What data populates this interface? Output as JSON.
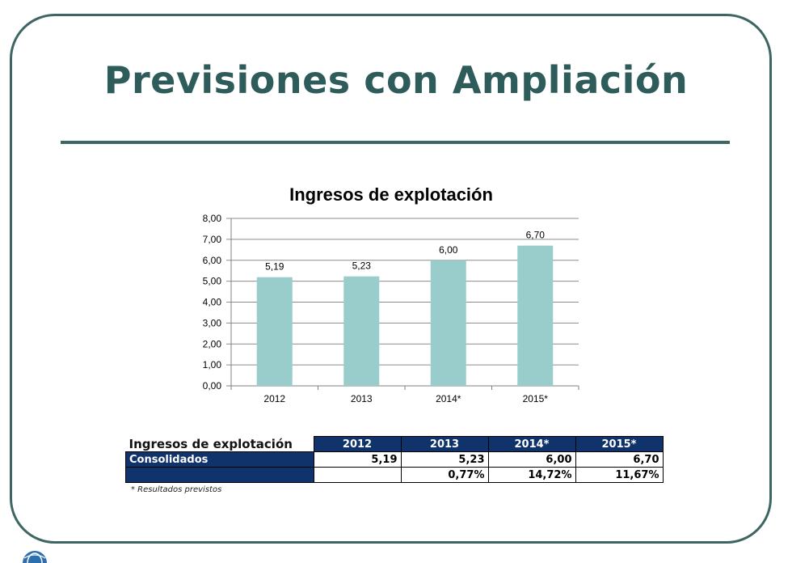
{
  "slide": {
    "title": "Previsiones con Ampliación",
    "colors": {
      "frame": "#3d6663",
      "title": "#2e5c5a",
      "bar": "#99cdcb",
      "table_header": "#11336b"
    }
  },
  "chart_data": {
    "type": "bar",
    "title": "Ingresos de explotación",
    "categories": [
      "2012",
      "2013",
      "2014*",
      "2015*"
    ],
    "values": [
      5.19,
      5.23,
      6.0,
      6.7
    ],
    "value_labels": [
      "5,19",
      "5,23",
      "6,00",
      "6,70"
    ],
    "yticks": [
      "0,00",
      "1,00",
      "2,00",
      "3,00",
      "4,00",
      "5,00",
      "6,00",
      "7,00",
      "8,00"
    ],
    "ylim": [
      0,
      8
    ],
    "xlabel": "",
    "ylabel": "",
    "grid": true,
    "legend": "none"
  },
  "table": {
    "corner": "Ingresos de explotación",
    "headers": [
      "2012",
      "2013",
      "2014*",
      "2015*"
    ],
    "rows": [
      {
        "label": "Consolidados",
        "values": [
          "5,19",
          "5,23",
          "6,00",
          "6,70"
        ]
      },
      {
        "label": "",
        "values": [
          "",
          "0,77%",
          "14,72%",
          "11,67%"
        ]
      }
    ]
  },
  "footnote": "* Resultados previstos",
  "logo": {
    "icon": "globe-logo-icon"
  }
}
